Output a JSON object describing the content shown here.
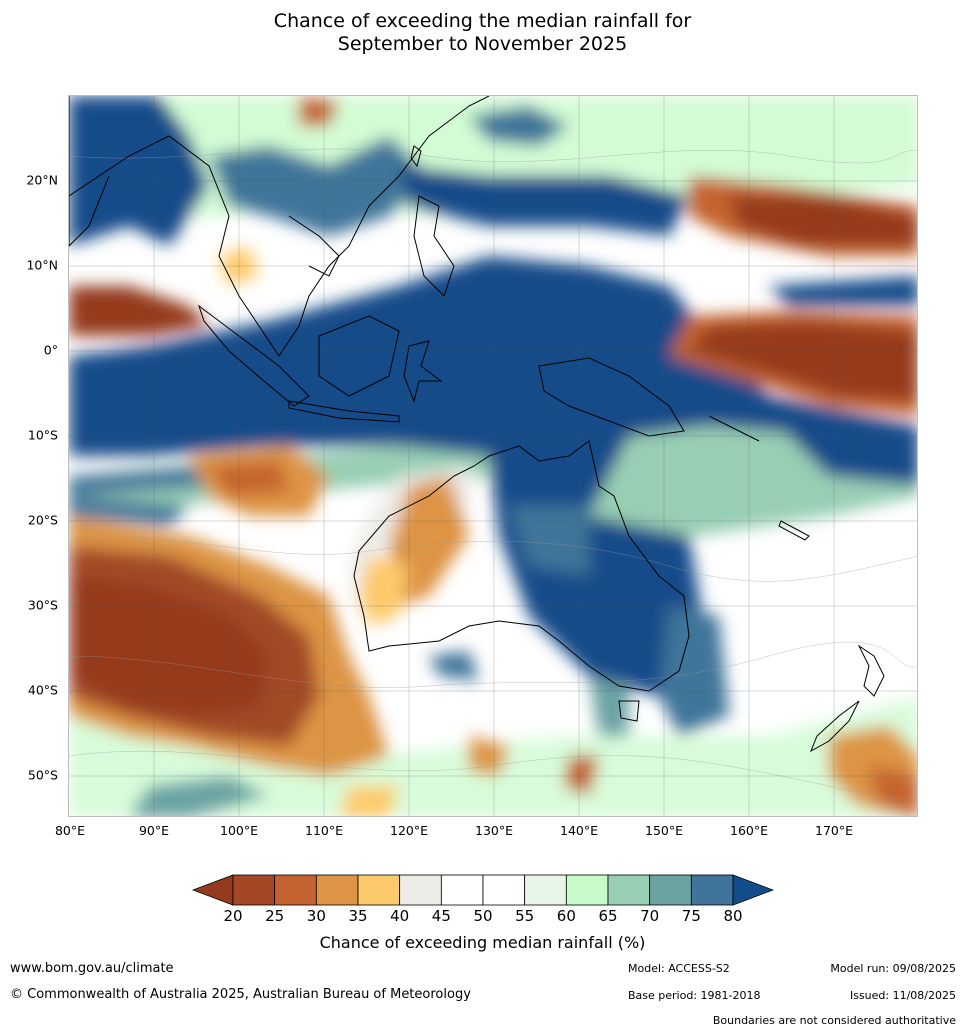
{
  "title": {
    "line1": "Chance of exceeding the median rainfall for",
    "line2": "September to November 2025"
  },
  "map": {
    "lon_range": [
      80,
      180
    ],
    "lat_range": [
      -55,
      30
    ],
    "lat_labels": [
      "20°N",
      "10°N",
      "0°",
      "10°S",
      "20°S",
      "30°S",
      "40°S",
      "50°S"
    ],
    "lat_values": [
      20,
      10,
      0,
      -10,
      -20,
      -30,
      -40,
      -50
    ],
    "lon_labels": [
      "80°E",
      "90°E",
      "100°E",
      "110°E",
      "120°E",
      "130°E",
      "140°E",
      "150°E",
      "160°E",
      "170°E"
    ],
    "lon_values": [
      80,
      90,
      100,
      110,
      120,
      130,
      140,
      150,
      160,
      170
    ]
  },
  "colorbar": {
    "ticks": [
      "20",
      "25",
      "30",
      "35",
      "40",
      "45",
      "50",
      "55",
      "60",
      "65",
      "70",
      "75",
      "80"
    ],
    "colors": [
      "#a24825",
      "#c4632f",
      "#dd9445",
      "#fdca6b",
      "#edebe6",
      "#ffffff",
      "#ffffff",
      "#e8f6e8",
      "#c8fbca",
      "#98cfb4",
      "#6ba3a3",
      "#40749a"
    ],
    "low_color": "#953a1f",
    "high_color": "#124c8a",
    "title": "Chance of exceeding median rainfall (%)"
  },
  "footer": {
    "url": "www.bom.gov.au/climate",
    "copyright": "© Commonwealth of Australia 2025, Australian Bureau of Meteorology",
    "model": "Model: ACCESS-S2",
    "base_period": "Base period: 1981-2018",
    "model_run": "Model run: 09/08/2025",
    "issued": "Issued: 11/08/2025",
    "disclaimer": "Boundaries are not considered authoritative"
  }
}
